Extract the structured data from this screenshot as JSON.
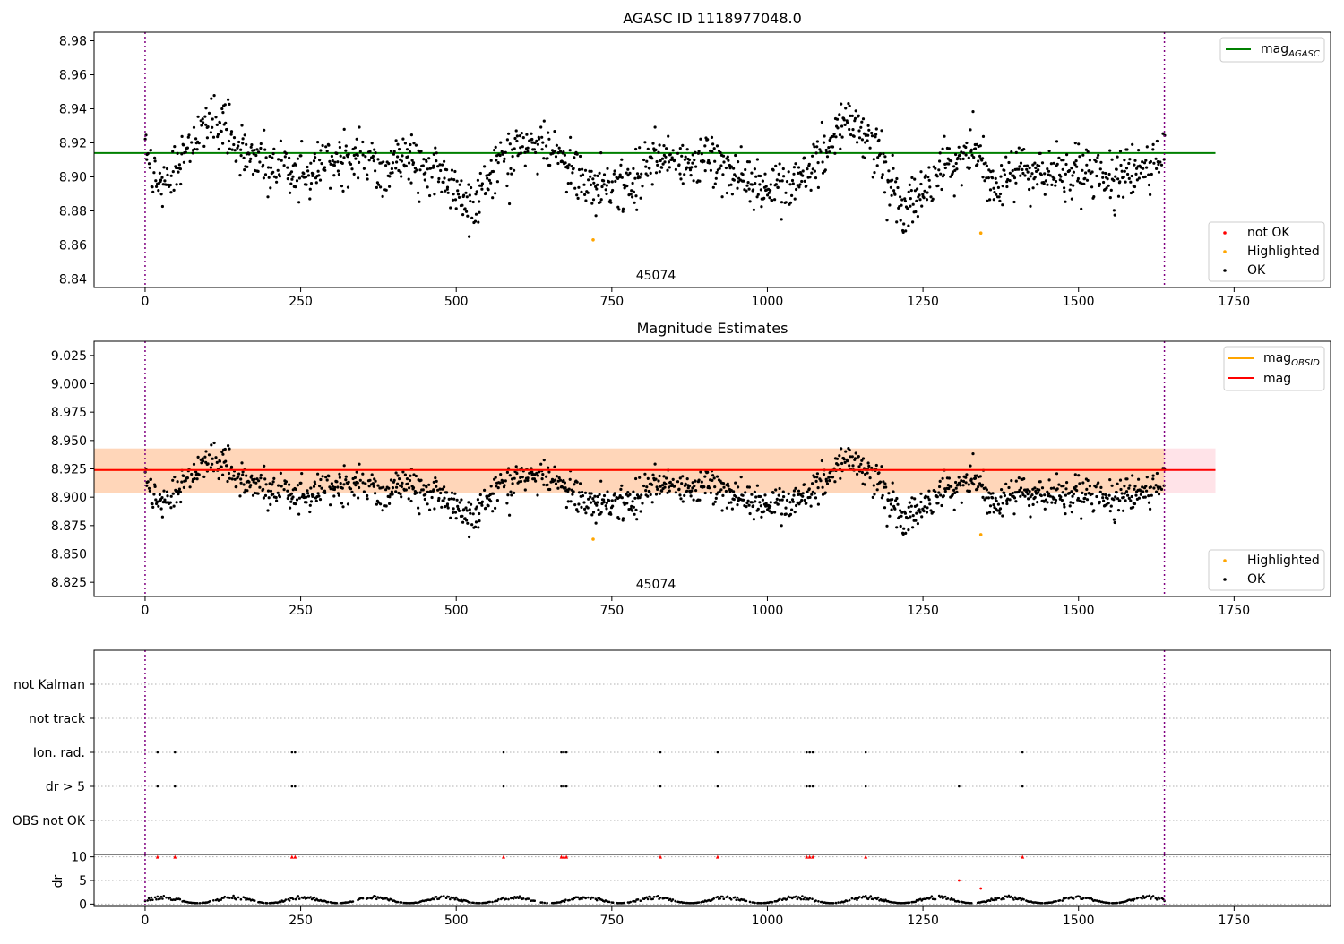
{
  "chart_data": [
    {
      "type": "scatter",
      "title": "AGASC ID 1118977048.0",
      "xlabel": "",
      "ylabel": "",
      "xlim": [
        -82,
        1905
      ],
      "ylim": [
        8.835,
        8.985
      ],
      "xticks": [
        0,
        250,
        500,
        750,
        1000,
        1250,
        1500,
        1750
      ],
      "xtick_labels": [
        "0",
        "250",
        "500",
        "750",
        "1000",
        "1250",
        "1500",
        "1750"
      ],
      "yticks": [
        8.84,
        8.86,
        8.88,
        8.9,
        8.92,
        8.94,
        8.96,
        8.98
      ],
      "ytick_labels": [
        "8.84",
        "8.86",
        "8.88",
        "8.90",
        "8.92",
        "8.94",
        "8.96",
        "8.98"
      ],
      "obsid_boundaries": [
        0,
        1638
      ],
      "obsid_label": {
        "text": "45074",
        "x": 819,
        "y": 8.84
      },
      "reference_lines": [
        {
          "name": "mag_AGASC",
          "y": 8.914,
          "x": [
            -82,
            1720
          ],
          "color": "#008000"
        }
      ],
      "highlighted_points": [
        {
          "x": 720,
          "y": 8.863
        },
        {
          "x": 1343,
          "y": 8.867
        }
      ],
      "ok_series_trend": {
        "x": [
          0,
          25,
          60,
          100,
          120,
          150,
          200,
          250,
          300,
          340,
          380,
          410,
          450,
          500,
          530,
          560,
          600,
          640,
          680,
          720,
          780,
          820,
          860,
          900,
          940,
          980,
          1030,
          1070,
          1100,
          1130,
          1160,
          1190,
          1215,
          1250,
          1290,
          1330,
          1360,
          1400,
          1450,
          1500,
          1560,
          1600,
          1638
        ],
        "y": [
          8.915,
          8.893,
          8.913,
          8.93,
          8.935,
          8.915,
          8.906,
          8.9,
          8.91,
          8.913,
          8.9,
          8.912,
          8.905,
          8.893,
          8.883,
          8.905,
          8.92,
          8.918,
          8.905,
          8.893,
          8.895,
          8.912,
          8.905,
          8.91,
          8.905,
          8.893,
          8.895,
          8.905,
          8.92,
          8.93,
          8.92,
          8.905,
          8.878,
          8.893,
          8.905,
          8.918,
          8.895,
          8.905,
          8.9,
          8.905,
          8.9,
          8.905,
          8.91
        ]
      },
      "legend": {
        "placement": "right",
        "lines": [
          {
            "label_base": "mag",
            "label_sub": "AGASC",
            "color": "#008000"
          }
        ],
        "markers": [
          {
            "label": "not OK",
            "color": "#ff0000"
          },
          {
            "label": "Highlighted",
            "color": "#ffa500"
          },
          {
            "label": "OK",
            "color": "#000000"
          }
        ]
      }
    },
    {
      "type": "scatter",
      "title": "Magnitude Estimates",
      "xlabel": "",
      "ylabel": "",
      "xlim": [
        -82,
        1905
      ],
      "ylim": [
        8.8125,
        9.0375
      ],
      "xticks": [
        0,
        250,
        500,
        750,
        1000,
        1250,
        1500,
        1750
      ],
      "xtick_labels": [
        "0",
        "250",
        "500",
        "750",
        "1000",
        "1250",
        "1500",
        "1750"
      ],
      "yticks": [
        8.825,
        8.85,
        8.875,
        8.9,
        8.925,
        8.95,
        8.975,
        9.0,
        9.025
      ],
      "ytick_labels": [
        "8.825",
        "8.850",
        "8.875",
        "8.900",
        "8.925",
        "8.950",
        "8.975",
        "9.000",
        "9.025"
      ],
      "obsid_boundaries": [
        0,
        1638
      ],
      "obsid_label": {
        "text": "45074",
        "x": 819,
        "y": 8.8125
      },
      "bands": [
        {
          "name": "mag",
          "y0": 8.904,
          "y1": 8.943,
          "x": [
            -82,
            1720
          ],
          "color": "#ffc0cb"
        },
        {
          "name": "mag_OBSID",
          "y0": 8.904,
          "y1": 8.943,
          "x": [
            -82,
            1638
          ],
          "color": "#ffa500"
        }
      ],
      "reference_lines": [
        {
          "name": "mag_OBSID",
          "y": 8.924,
          "x": [
            -82,
            1638
          ],
          "color": "#ffa500"
        },
        {
          "name": "mag",
          "y": 8.924,
          "x": [
            -82,
            1720
          ],
          "color": "#ff0000"
        }
      ],
      "highlighted_points": [
        {
          "x": 720,
          "y": 8.863
        },
        {
          "x": 1343,
          "y": 8.867
        }
      ],
      "legend": {
        "placement": "right",
        "lines": [
          {
            "label_base": "mag",
            "label_sub": "OBSID",
            "color": "#ffa500"
          },
          {
            "label_base": "mag",
            "label_sub": "",
            "color": "#ff0000"
          }
        ],
        "markers": [
          {
            "label": "Highlighted",
            "color": "#ffa500"
          },
          {
            "label": "OK",
            "color": "#000000"
          }
        ]
      }
    },
    {
      "type": "scatter",
      "title": "",
      "xlim": [
        -82,
        1905
      ],
      "categories": [
        "not Kalman",
        "not track",
        "Ion. rad.",
        "dr > 5",
        "OBS not OK"
      ],
      "flag_events": {
        "Ion. rad.": [
          20,
          48,
          236,
          241,
          576,
          669,
          673,
          677,
          828,
          920,
          1063,
          1068,
          1073,
          1158,
          1410
        ],
        "dr > 5": [
          20,
          48,
          236,
          241,
          576,
          669,
          673,
          677,
          828,
          920,
          1063,
          1068,
          1073,
          1158,
          1308,
          1410
        ]
      },
      "obsid_boundaries": [
        0,
        1638
      ]
    },
    {
      "type": "scatter",
      "title": "",
      "xlabel": "",
      "ylabel": "dr",
      "xlim": [
        -82,
        1905
      ],
      "ylim": [
        -0.5,
        10.5
      ],
      "yticks": [
        0,
        5,
        10
      ],
      "ytick_labels": [
        "0",
        "5",
        "10"
      ],
      "xticks": [
        0,
        250,
        500,
        750,
        1000,
        1250,
        1500,
        1750
      ],
      "xtick_labels": [
        "0",
        "250",
        "500",
        "750",
        "1000",
        "1250",
        "1500",
        "1750"
      ],
      "obsid_boundaries": [
        0,
        1638
      ],
      "clipped_at_10": [
        20,
        48,
        236,
        241,
        576,
        669,
        673,
        677,
        828,
        920,
        1063,
        1068,
        1073,
        1158,
        1410
      ],
      "outliers": [
        {
          "x": 1308,
          "y": 5.0
        },
        {
          "x": 1343,
          "y": 3.3
        }
      ],
      "baseline": {
        "low": 0.2,
        "high": 1.8
      }
    }
  ]
}
